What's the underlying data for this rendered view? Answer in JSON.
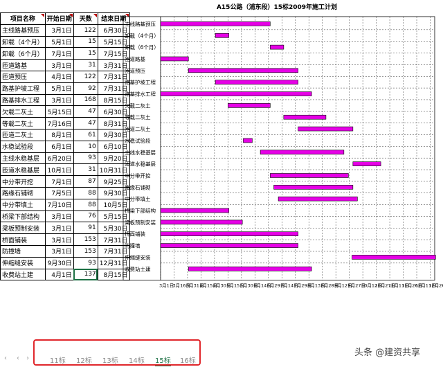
{
  "title": "A15公路（浦东段）15标2009年施工计划",
  "headers": {
    "name": "项目名称",
    "start": "开始日期",
    "days": "天数",
    "end": "结束日期"
  },
  "rows": [
    {
      "name": "主线路基预压",
      "start": "3月1日",
      "days": "122",
      "end": "6月30日"
    },
    {
      "name": "卸载（4个月）",
      "start": "5月1日",
      "days": "15",
      "end": "5月15日"
    },
    {
      "name": "卸载（6个月）",
      "start": "7月1日",
      "days": "15",
      "end": "7月15日"
    },
    {
      "name": "匝道路基",
      "start": "3月1日",
      "days": "31",
      "end": "3月31日"
    },
    {
      "name": "匝道预压",
      "start": "4月1日",
      "days": "122",
      "end": "7月31日"
    },
    {
      "name": "路基护坡工程",
      "start": "5月1日",
      "days": "92",
      "end": "7月31日"
    },
    {
      "name": "路基排水工程",
      "start": "3月1日",
      "days": "168",
      "end": "8月15日"
    },
    {
      "name": "欠载二灰土",
      "start": "5月15日",
      "days": "47",
      "end": "6月30日"
    },
    {
      "name": "等载二灰土",
      "start": "7月16日",
      "days": "47",
      "end": "8月31日"
    },
    {
      "name": "匝道二灰土",
      "start": "8月1日",
      "days": "61",
      "end": "9月30日"
    },
    {
      "name": "水稳试验段",
      "start": "6月1日",
      "days": "10",
      "end": "6月10日"
    },
    {
      "name": "主线水稳基层",
      "start": "6月20日",
      "days": "93",
      "end": "9月20日"
    },
    {
      "name": "匝道水稳基层",
      "start": "10月1日",
      "days": "31",
      "end": "10月31日"
    },
    {
      "name": "中分带开挖",
      "start": "7月1日",
      "days": "87",
      "end": "9月25日"
    },
    {
      "name": "路缘石铺砌",
      "start": "7月5日",
      "days": "88",
      "end": "9月30日"
    },
    {
      "name": "中分带填土",
      "start": "7月10日",
      "days": "88",
      "end": "10月5日"
    },
    {
      "name": "桥梁下部结构",
      "start": "3月1日",
      "days": "76",
      "end": "5月15日"
    },
    {
      "name": "梁板预制安装",
      "start": "3月1日",
      "days": "91",
      "end": "5月30日"
    },
    {
      "name": "桥面铺装",
      "start": "3月1日",
      "days": "153",
      "end": "7月31日"
    },
    {
      "name": "防撞墙",
      "start": "3月1日",
      "days": "153",
      "end": "7月31日"
    },
    {
      "name": "伸缩缝安装",
      "start": "9月30日",
      "days": "93",
      "end": "12月31日"
    },
    {
      "name": "收费站土建",
      "start": "4月1日",
      "days": "137",
      "end": "8月15日"
    }
  ],
  "bars": [
    {
      "label": "主线路基预压",
      "start_day": 0,
      "days": 122
    },
    {
      "label": "卸载（4个月）",
      "start_day": 61,
      "days": 15
    },
    {
      "label": "卸载（6个月）",
      "start_day": 122,
      "days": 15
    },
    {
      "label": "匝道路基",
      "start_day": 0,
      "days": 31
    },
    {
      "label": "匝道预压",
      "start_day": 31,
      "days": 122
    },
    {
      "label": "路基护坡工程",
      "start_day": 61,
      "days": 92
    },
    {
      "label": "路基排水工程",
      "start_day": 0,
      "days": 168
    },
    {
      "label": "欠载二灰土",
      "start_day": 75,
      "days": 47
    },
    {
      "label": "等载二灰土",
      "start_day": 137,
      "days": 47
    },
    {
      "label": "匝道二灰土",
      "start_day": 153,
      "days": 61
    },
    {
      "label": "水稳试验段",
      "start_day": 92,
      "days": 10
    },
    {
      "label": "主线水稳基层",
      "start_day": 111,
      "days": 93
    },
    {
      "label": "匝道水稳基层",
      "start_day": 214,
      "days": 31
    },
    {
      "label": "中分带开挖",
      "start_day": 122,
      "days": 87
    },
    {
      "label": "路缘石铺砌",
      "start_day": 126,
      "days": 88
    },
    {
      "label": "中分带填土",
      "start_day": 131,
      "days": 88
    },
    {
      "label": "桥梁下部结构",
      "start_day": 0,
      "days": 76
    },
    {
      "label": "梁板预制安装",
      "start_day": 0,
      "days": 91
    },
    {
      "label": "桥面铺装",
      "start_day": 0,
      "days": 153
    },
    {
      "label": "防撞墙",
      "start_day": 0,
      "days": 153
    },
    {
      "label": "伸缩缝安装",
      "start_day": 213,
      "days": 93
    },
    {
      "label": "收费站土建",
      "start_day": 31,
      "days": 137
    }
  ],
  "axis_ticks": [
    "3月1日",
    "3月16日",
    "3月31日",
    "4月15日",
    "4月30日",
    "5月15日",
    "5月30日",
    "6月14日",
    "6月29日",
    "7月14日",
    "7月29日",
    "8月13日",
    "8月28日",
    "9月12日",
    "9月27日",
    "10月12日",
    "10月27日",
    "11月11日",
    "11月26日",
    "12月11日",
    "12月26日"
  ],
  "axis_days": [
    0,
    15,
    30,
    45,
    60,
    75,
    90,
    105,
    120,
    135,
    150,
    165,
    180,
    195,
    210,
    225,
    240,
    255,
    270,
    285,
    300
  ],
  "axis_max_day": 305,
  "bar_color": "#e600e6",
  "selected_row": 21,
  "sheet_tabs": [
    "11标",
    "12标",
    "13标",
    "14标",
    "15标",
    "16标"
  ],
  "active_tab": "15标",
  "watermark": "头条 @建资共享"
}
